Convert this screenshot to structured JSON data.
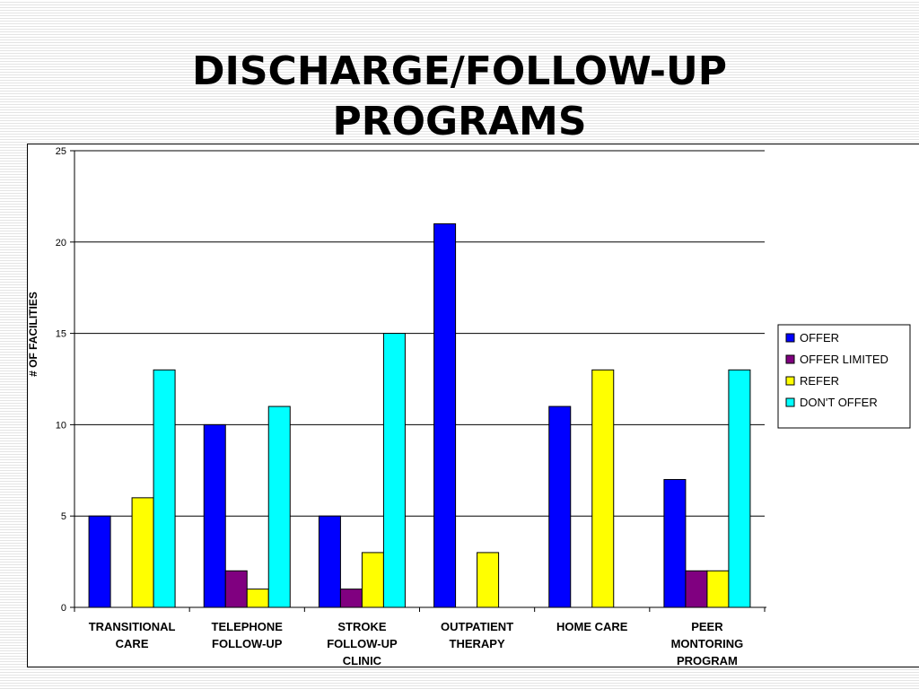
{
  "slide": {
    "title_lines": [
      "DISCHARGE/FOLLOW-UP",
      "PROGRAMS"
    ]
  },
  "chart_data": {
    "type": "bar",
    "title": "DISCHARGE/FOLLOW-UP PROGRAMS",
    "xlabel": "",
    "ylabel": "# OF FACILITIES",
    "ylim": [
      0,
      25
    ],
    "yticks": [
      0,
      5,
      10,
      15,
      20,
      25
    ],
    "grid": true,
    "legend_position": "right",
    "categories": [
      [
        "TRANSITIONAL",
        "CARE"
      ],
      [
        "TELEPHONE",
        "FOLLOW-UP"
      ],
      [
        "STROKE",
        "FOLLOW-UP",
        "CLINIC"
      ],
      [
        "OUTPATIENT",
        "THERAPY"
      ],
      [
        "HOME CARE"
      ],
      [
        "PEER",
        "MONTORING",
        "PROGRAM"
      ]
    ],
    "series": [
      {
        "name": "OFFER",
        "color": "#0000ff",
        "values": [
          5,
          10,
          5,
          21,
          11,
          7
        ]
      },
      {
        "name": "OFFER LIMITED",
        "color": "#800080",
        "values": [
          0,
          2,
          1,
          0,
          0,
          2
        ]
      },
      {
        "name": "REFER",
        "color": "#ffff00",
        "values": [
          6,
          1,
          3,
          3,
          13,
          2
        ]
      },
      {
        "name": "DON'T OFFER",
        "color": "#00ffff",
        "values": [
          13,
          11,
          15,
          0,
          0,
          13
        ]
      }
    ]
  }
}
